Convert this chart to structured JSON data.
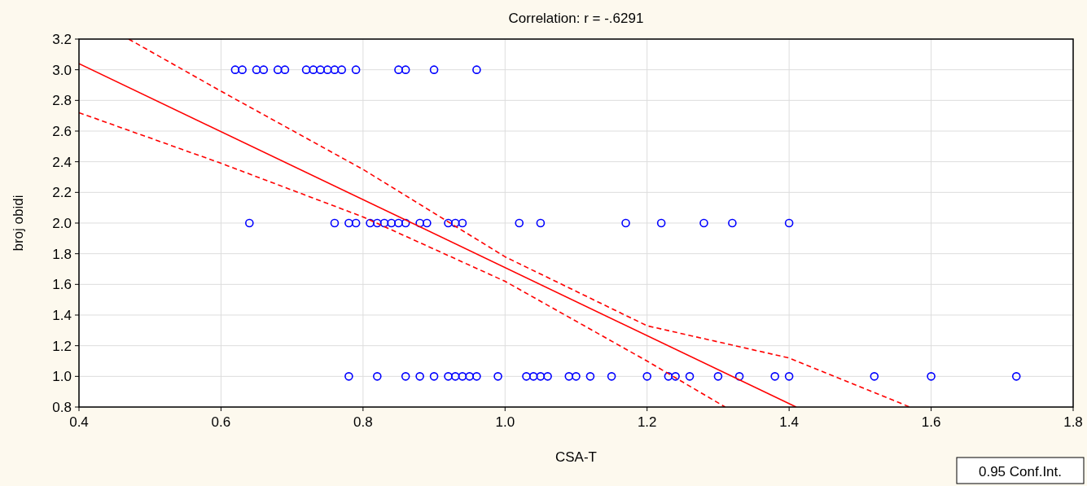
{
  "chart_data": {
    "type": "scatter",
    "title": "Correlation: r = -.6291",
    "xlabel": "CSA-T",
    "ylabel": "broj obidi",
    "annotations": [
      "0.95 Conf.Int."
    ],
    "xlim": [
      0.4,
      1.8
    ],
    "xticks": [
      {
        "value": 0.4,
        "label": "0.4"
      },
      {
        "value": 0.6,
        "label": "0.6"
      },
      {
        "value": 0.8,
        "label": "0.8"
      },
      {
        "value": 1.0,
        "label": "1.0"
      },
      {
        "value": 1.2,
        "label": "1.2"
      },
      {
        "value": 1.4,
        "label": "1.4"
      },
      {
        "value": 1.6,
        "label": "1.6"
      },
      {
        "value": 1.8,
        "label": "1.8"
      }
    ],
    "ylim": [
      0.8,
      3.2
    ],
    "yticks": [
      {
        "value": 0.8,
        "label": "0.8"
      },
      {
        "value": 1.0,
        "label": "1.0"
      },
      {
        "value": 1.2,
        "label": "1.2"
      },
      {
        "value": 1.4,
        "label": "1.4"
      },
      {
        "value": 1.6,
        "label": "1.6"
      },
      {
        "value": 1.8,
        "label": "1.8"
      },
      {
        "value": 2.0,
        "label": "2.0"
      },
      {
        "value": 2.2,
        "label": "2.2"
      },
      {
        "value": 2.4,
        "label": "2.4"
      },
      {
        "value": 2.6,
        "label": "2.6"
      },
      {
        "value": 2.8,
        "label": "2.8"
      },
      {
        "value": 3.0,
        "label": "3.0"
      },
      {
        "value": 3.2,
        "label": "3.2"
      }
    ],
    "grid": true,
    "marker": "circle",
    "series": [
      {
        "color": "#0000ff",
        "x": [
          0.62,
          0.63,
          0.65,
          0.66,
          0.68,
          0.69,
          0.72,
          0.73,
          0.74,
          0.75,
          0.76,
          0.77,
          0.79,
          0.85,
          0.86,
          0.9,
          0.96
        ],
        "values": [
          3,
          3,
          3,
          3,
          3,
          3,
          3,
          3,
          3,
          3,
          3,
          3,
          3,
          3,
          3,
          3,
          3
        ]
      },
      {
        "color": "#0000ff",
        "x": [
          0.64,
          0.76,
          0.78,
          0.79,
          0.81,
          0.82,
          0.83,
          0.84,
          0.85,
          0.86,
          0.88,
          0.89,
          0.92,
          0.93,
          0.94,
          1.02,
          1.05,
          1.17,
          1.22,
          1.28,
          1.32,
          1.4
        ],
        "values": [
          2,
          2,
          2,
          2,
          2,
          2,
          2,
          2,
          2,
          2,
          2,
          2,
          2,
          2,
          2,
          2,
          2,
          2,
          2,
          2,
          2,
          2
        ]
      },
      {
        "color": "#0000ff",
        "x": [
          0.78,
          0.82,
          0.86,
          0.88,
          0.9,
          0.92,
          0.93,
          0.94,
          0.95,
          0.96,
          0.99,
          1.03,
          1.04,
          1.05,
          1.06,
          1.09,
          1.1,
          1.12,
          1.15,
          1.2,
          1.23,
          1.24,
          1.26,
          1.3,
          1.33,
          1.38,
          1.4,
          1.52,
          1.6,
          1.72
        ],
        "values": [
          1,
          1,
          1,
          1,
          1,
          1,
          1,
          1,
          1,
          1,
          1,
          1,
          1,
          1,
          1,
          1,
          1,
          1,
          1,
          1,
          1,
          1,
          1,
          1,
          1,
          1,
          1,
          1,
          1,
          1
        ]
      },
      {
        "type": "line",
        "color": "#ff0000",
        "line_style": "solid",
        "marker": "none",
        "x": [
          0.4,
          1.41
        ],
        "values": [
          3.04,
          0.8
        ]
      },
      {
        "type": "line",
        "color": "#ff0000",
        "line_style": "dashed",
        "marker": "none",
        "x": [
          0.47,
          0.6,
          0.8,
          1.0,
          1.2,
          1.4,
          1.57
        ],
        "values": [
          3.2,
          2.86,
          2.35,
          1.78,
          1.33,
          1.12,
          0.8
        ]
      },
      {
        "type": "line",
        "color": "#ff0000",
        "line_style": "dashed",
        "marker": "none",
        "x": [
          0.4,
          0.6,
          0.8,
          1.0,
          1.2,
          1.31
        ],
        "values": [
          2.72,
          2.39,
          2.04,
          1.62,
          1.1,
          0.8
        ]
      }
    ]
  }
}
